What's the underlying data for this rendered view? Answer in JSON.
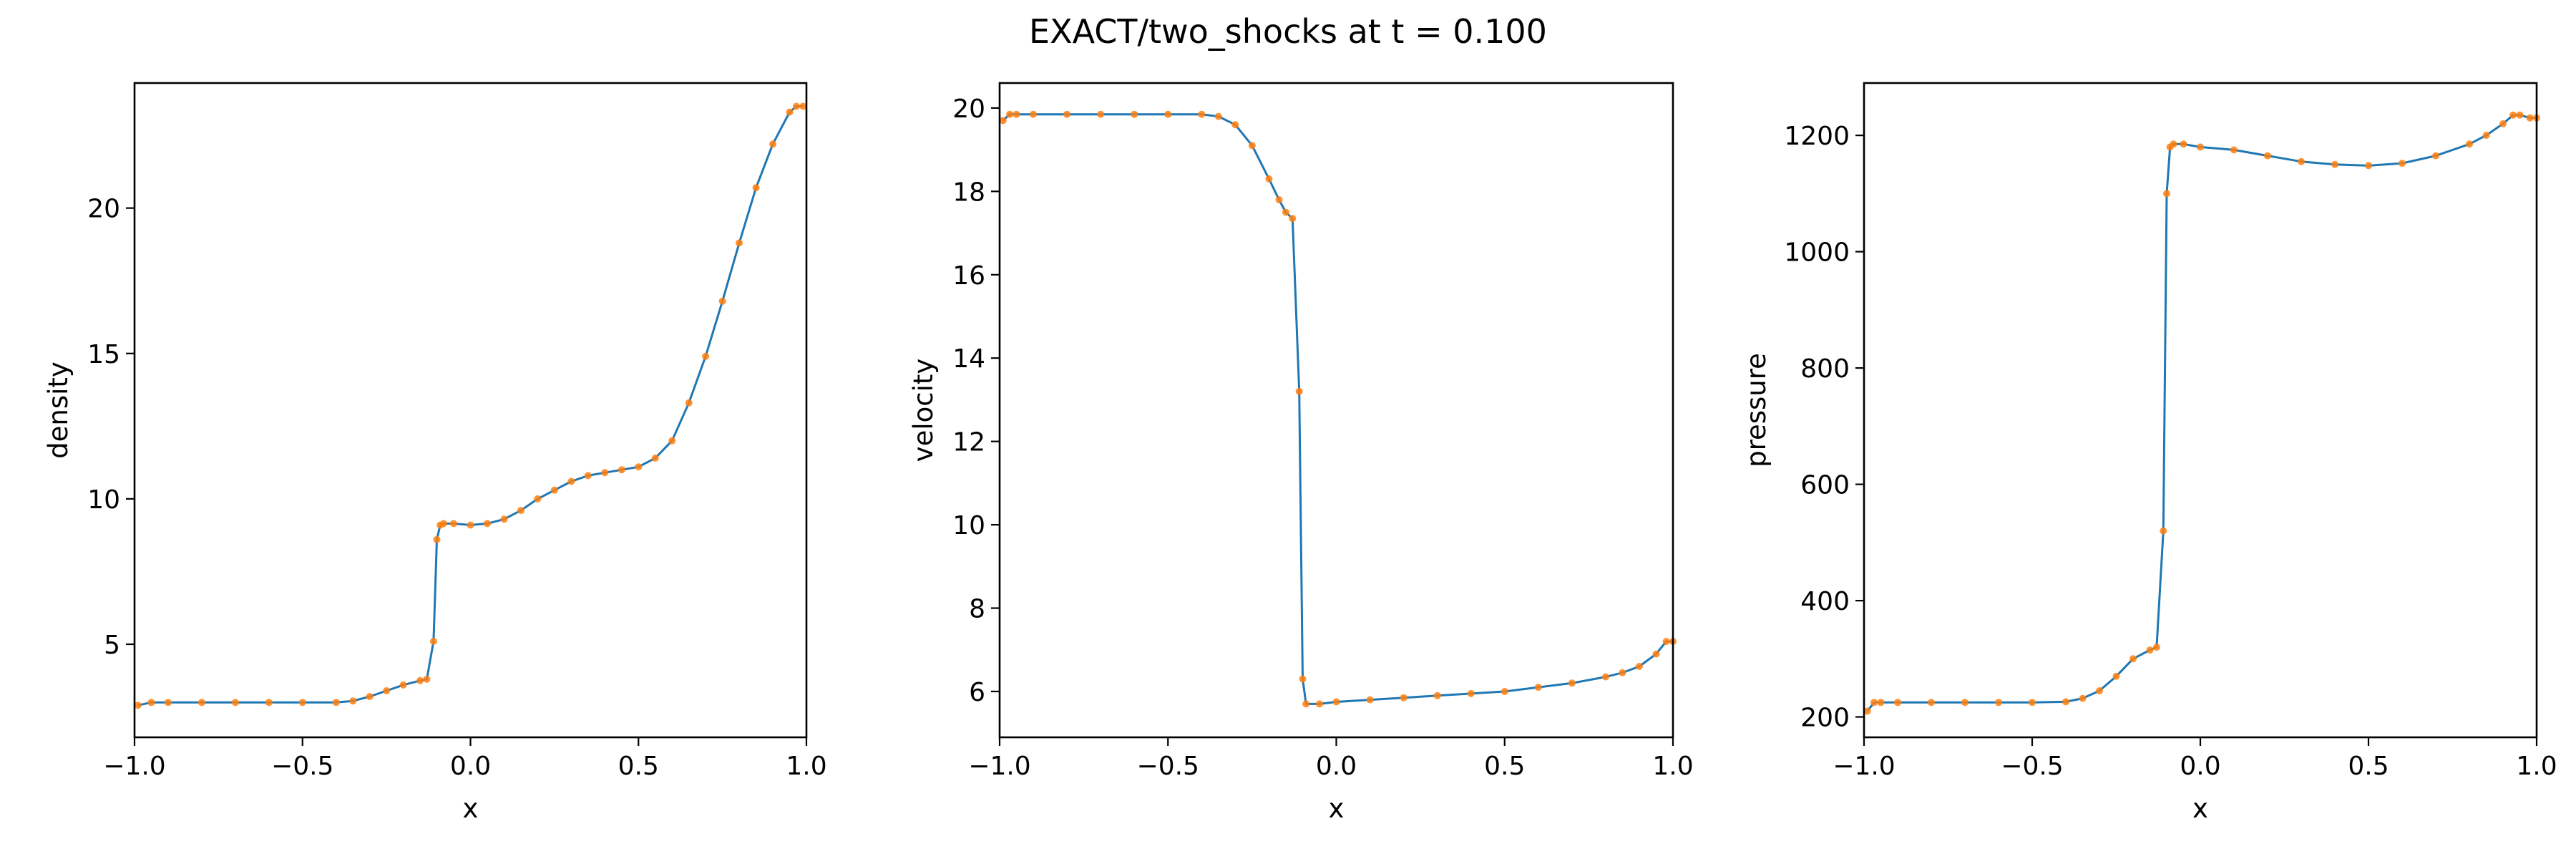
{
  "figure": {
    "title": "EXACT/two_shocks at t = 0.100"
  },
  "colors": {
    "line": "#1f77b4",
    "markers": "#ff7f0e",
    "axes": "#000000",
    "background": "#ffffff"
  },
  "chart_data": [
    {
      "type": "line",
      "title": "",
      "xlabel": "x",
      "ylabel": "density",
      "xlim": [
        -1.0,
        1.0
      ],
      "ylim": [
        1.8,
        24.3
      ],
      "xticks": [
        "−1.0",
        "−0.5",
        "0.0",
        "0.5",
        "1.0"
      ],
      "xtick_values": [
        -1.0,
        -0.5,
        0.0,
        0.5,
        1.0
      ],
      "yticks": [
        "5",
        "10",
        "15",
        "20"
      ],
      "ytick_values": [
        5,
        10,
        15,
        20
      ],
      "grid": false,
      "legend": "none",
      "series": [
        {
          "style": "line+markers",
          "x": [
            -0.99,
            -0.95,
            -0.9,
            -0.8,
            -0.7,
            -0.6,
            -0.5,
            -0.4,
            -0.35,
            -0.3,
            -0.25,
            -0.2,
            -0.15,
            -0.13,
            -0.11,
            -0.1,
            -0.09,
            -0.08,
            -0.05,
            0.0,
            0.05,
            0.1,
            0.15,
            0.2,
            0.25,
            0.3,
            0.35,
            0.4,
            0.45,
            0.5,
            0.55,
            0.6,
            0.65,
            0.7,
            0.75,
            0.8,
            0.85,
            0.9,
            0.95,
            0.97,
            0.99
          ],
          "y": [
            2.9,
            3.0,
            3.0,
            3.0,
            3.0,
            3.0,
            3.0,
            3.0,
            3.05,
            3.2,
            3.4,
            3.6,
            3.75,
            3.8,
            5.1,
            8.6,
            9.1,
            9.15,
            9.15,
            9.1,
            9.15,
            9.3,
            9.6,
            10.0,
            10.3,
            10.6,
            10.8,
            10.9,
            11.0,
            11.1,
            11.4,
            12.0,
            13.3,
            14.9,
            16.8,
            18.8,
            20.7,
            22.2,
            23.3,
            23.5,
            23.5
          ]
        }
      ]
    },
    {
      "type": "line",
      "title": "",
      "xlabel": "x",
      "ylabel": "velocity",
      "xlim": [
        -1.0,
        1.0
      ],
      "ylim": [
        4.9,
        20.6
      ],
      "xticks": [
        "−1.0",
        "−0.5",
        "0.0",
        "0.5",
        "1.0"
      ],
      "xtick_values": [
        -1.0,
        -0.5,
        0.0,
        0.5,
        1.0
      ],
      "yticks": [
        "6",
        "8",
        "10",
        "12",
        "14",
        "16",
        "18",
        "20"
      ],
      "ytick_values": [
        6,
        8,
        10,
        12,
        14,
        16,
        18,
        20
      ],
      "grid": false,
      "legend": "none",
      "series": [
        {
          "style": "line+markers",
          "x": [
            -0.99,
            -0.97,
            -0.95,
            -0.9,
            -0.8,
            -0.7,
            -0.6,
            -0.5,
            -0.4,
            -0.35,
            -0.3,
            -0.25,
            -0.2,
            -0.17,
            -0.15,
            -0.13,
            -0.11,
            -0.1,
            -0.09,
            -0.05,
            0.0,
            0.1,
            0.2,
            0.3,
            0.4,
            0.5,
            0.6,
            0.7,
            0.8,
            0.85,
            0.9,
            0.95,
            0.98,
            1.0
          ],
          "y": [
            19.7,
            19.85,
            19.85,
            19.85,
            19.85,
            19.85,
            19.85,
            19.85,
            19.85,
            19.8,
            19.6,
            19.1,
            18.3,
            17.8,
            17.5,
            17.35,
            13.2,
            6.3,
            5.7,
            5.7,
            5.75,
            5.8,
            5.85,
            5.9,
            5.95,
            6.0,
            6.1,
            6.2,
            6.35,
            6.45,
            6.6,
            6.9,
            7.2,
            7.2
          ]
        }
      ]
    },
    {
      "type": "line",
      "title": "",
      "xlabel": "x",
      "ylabel": "pressure",
      "xlim": [
        -1.0,
        1.0
      ],
      "ylim": [
        165,
        1290
      ],
      "xticks": [
        "−1.0",
        "−0.5",
        "0.0",
        "0.5",
        "1.0"
      ],
      "xtick_values": [
        -1.0,
        -0.5,
        0.0,
        0.5,
        1.0
      ],
      "yticks": [
        "200",
        "400",
        "600",
        "800",
        "1000",
        "1200"
      ],
      "ytick_values": [
        200,
        400,
        600,
        800,
        1000,
        1200
      ],
      "grid": false,
      "legend": "none",
      "series": [
        {
          "style": "line+markers",
          "x": [
            -0.99,
            -0.97,
            -0.95,
            -0.9,
            -0.8,
            -0.7,
            -0.6,
            -0.5,
            -0.4,
            -0.35,
            -0.3,
            -0.25,
            -0.2,
            -0.15,
            -0.13,
            -0.11,
            -0.1,
            -0.09,
            -0.08,
            -0.05,
            0.0,
            0.1,
            0.2,
            0.3,
            0.4,
            0.5,
            0.6,
            0.7,
            0.8,
            0.85,
            0.9,
            0.93,
            0.95,
            0.98,
            1.0
          ],
          "y": [
            210,
            225,
            225,
            225,
            225,
            225,
            225,
            225,
            226,
            232,
            245,
            270,
            300,
            315,
            320,
            520,
            1100,
            1180,
            1185,
            1185,
            1180,
            1175,
            1165,
            1155,
            1150,
            1148,
            1152,
            1165,
            1185,
            1200,
            1220,
            1235,
            1235,
            1230,
            1230
          ]
        }
      ]
    }
  ]
}
